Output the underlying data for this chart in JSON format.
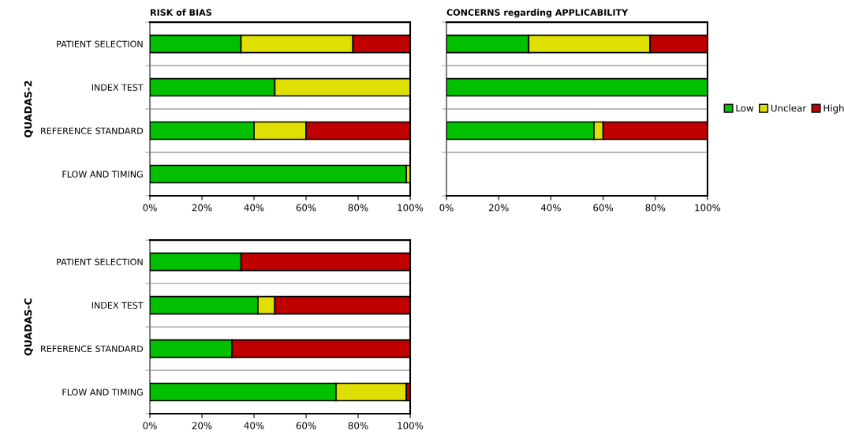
{
  "chart_data": [
    {
      "type": "bar",
      "orientation": "horizontal",
      "stacked": true,
      "title": "RISK of BIAS",
      "ylabel": "QUADAS-2",
      "categories": [
        "PATIENT SELECTION",
        "INDEX TEST",
        "REFERENCE STANDARD",
        "FLOW AND TIMING"
      ],
      "series": [
        {
          "color": "#00c000",
          "values": [
            35,
            48,
            40,
            98.5
          ]
        },
        {
          "color": "#e0e000",
          "values": [
            43,
            52,
            20,
            1.5
          ]
        },
        {
          "color": "#c00000",
          "values": [
            22,
            0,
            40,
            0
          ]
        }
      ],
      "xlim": [
        0,
        100
      ],
      "xticks": [
        {
          "value": 0,
          "label": "0%"
        },
        {
          "value": 20,
          "label": "20%"
        },
        {
          "value": 40,
          "label": "40%"
        },
        {
          "value": 60,
          "label": "60%"
        },
        {
          "value": 80,
          "label": "80%"
        },
        {
          "value": 100,
          "label": "100%"
        }
      ],
      "grid": "y",
      "legend": false
    },
    {
      "type": "bar",
      "orientation": "horizontal",
      "stacked": true,
      "title": "CONCERNS regarding APPLICABILITY",
      "categories": [
        null,
        null,
        null,
        null
      ],
      "series": [
        {
          "name": "Low",
          "color": "#00c000",
          "values": [
            31.5,
            100,
            56.5,
            null
          ]
        },
        {
          "name": "Unclear",
          "color": "#e0e000",
          "values": [
            46.5,
            0,
            3.5,
            null
          ]
        },
        {
          "name": "High",
          "color": "#c00000",
          "values": [
            22,
            0,
            40,
            null
          ]
        }
      ],
      "xlim": [
        0,
        100
      ],
      "xticks": [
        {
          "value": 0,
          "label": "0%"
        },
        {
          "value": 20,
          "label": "20%"
        },
        {
          "value": 40,
          "label": "40%"
        },
        {
          "value": 60,
          "label": "60%"
        },
        {
          "value": 80,
          "label": "80%"
        },
        {
          "value": 100,
          "label": "100%"
        }
      ],
      "grid": "y",
      "legend": "right",
      "tick_labels": "x"
    },
    {
      "type": "bar",
      "orientation": "horizontal",
      "stacked": true,
      "ylabel": "QUADAS-C",
      "categories": [
        "PATIENT SELECTION",
        "INDEX TEST",
        "REFERENCE STANDARD",
        "FLOW AND TIMING"
      ],
      "series": [
        {
          "color": "#00c000",
          "values": [
            35,
            41.5,
            31.5,
            71.5
          ]
        },
        {
          "color": "#e0e000",
          "values": [
            0,
            6.5,
            0,
            27
          ]
        },
        {
          "color": "#c00000",
          "values": [
            65,
            52,
            68.5,
            1.5
          ]
        }
      ],
      "xlim": [
        0,
        100
      ],
      "xticks": [
        {
          "value": 0,
          "label": "0%"
        },
        {
          "value": 20,
          "label": "20%"
        },
        {
          "value": 40,
          "label": "40%"
        },
        {
          "value": 60,
          "label": "60%"
        },
        {
          "value": 80,
          "label": "80%"
        },
        {
          "value": 100,
          "label": "100%"
        }
      ],
      "grid": "y",
      "legend": false
    }
  ]
}
